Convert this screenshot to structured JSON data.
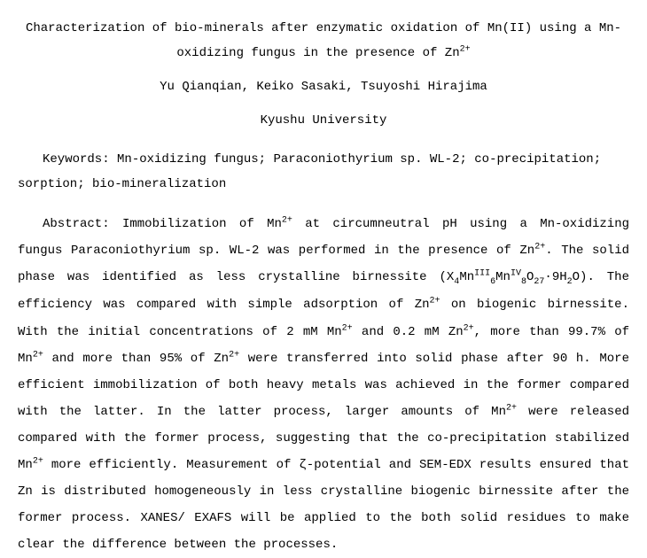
{
  "title": {
    "line1": "Characterization of bio-minerals after enzymatic oxidation of Mn(II) using a Mn-",
    "line2_pre": "oxidizing fungus in the presence of Zn",
    "line2_sup": "2+"
  },
  "authors": "Yu Qianqian, Keiko Sasaki, Tsuyoshi Hirajima",
  "affiliation": "Kyushu University",
  "keywords": {
    "label": "Keywords: ",
    "text": "Mn-oxidizing fungus; Paraconiothyrium sp. WL-2; co-precipitation; sorption; bio-mineralization"
  },
  "abstract": {
    "label": "Abstract: ",
    "p1": "Immobilization of Mn",
    "p1_sup": "2+",
    "p2": " at circumneutral pH using a Mn-oxidizing fungus Paraconiothyrium sp. WL-2 was performed in the presence of Zn",
    "p2_sup": "2+",
    "p3": ". The solid phase was identified as less crystalline birnessite (X",
    "p3_sub1": "4",
    "p3_mn1": "Mn",
    "p3_sup1": "III",
    "p3_sub2": "6",
    "p3_mn2": "Mn",
    "p3_sup2": "IV",
    "p3_sub3": "8",
    "p3_o": "O",
    "p3_sub4": "27",
    "p3_dot": "·9H",
    "p3_sub5": "2",
    "p3_end": "O). The efficiency was compared with simple adsorption of Zn",
    "p3_sup3": "2+",
    "p4": " on biogenic birnessite. With the initial concentrations of 2 mM Mn",
    "p4_sup1": "2+",
    "p5": " and 0.2 mM Zn",
    "p5_sup": "2+",
    "p6": ", more than 99.7% of Mn",
    "p6_sup": "2+",
    "p7": " and more than 95% of Zn",
    "p7_sup": "2+",
    "p8": " were transferred into solid phase after 90 h. More efficient immobilization of both heavy metals was achieved in the former compared with the latter. In the latter process, larger amounts of Mn",
    "p8_sup": "2+",
    "p9": " were released compared with the former process, suggesting that the co-precipitation stabilized Mn",
    "p9_sup": "2+",
    "p10": " more efficiently. Measurement of ζ-potential and SEM-EDX results ensured that Zn is distributed homogeneously in less crystalline biogenic birnessite after the former process. XANES/ EXAFS will be applied to the both solid residues to make clear the difference between the processes."
  },
  "typography": {
    "font_family": "Courier New",
    "font_size_pt": 11,
    "line_height": 2.0,
    "text_color": "#000000",
    "background_color": "#ffffff"
  }
}
